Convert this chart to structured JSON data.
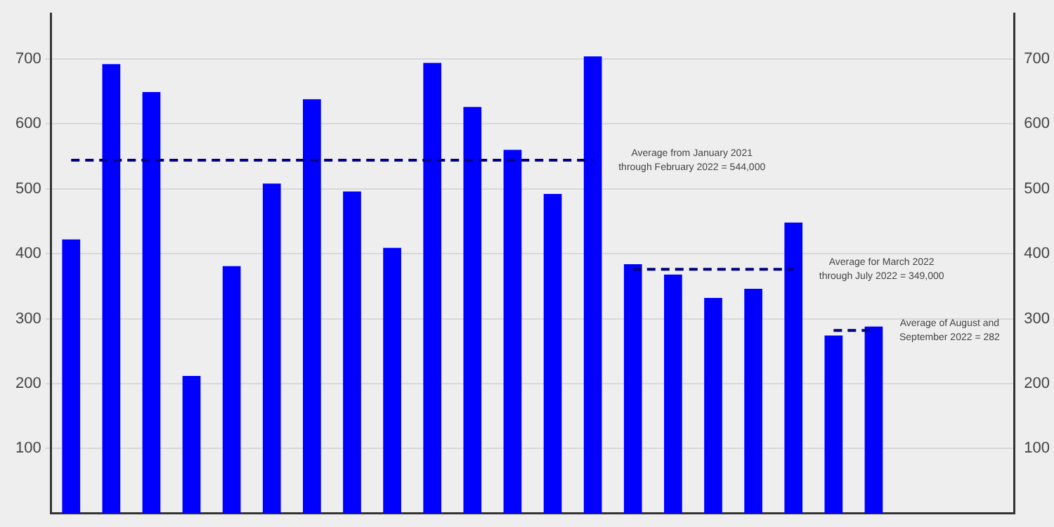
{
  "chart_data": {
    "type": "bar",
    "categories": [
      null,
      null,
      null,
      null,
      null,
      null,
      null,
      null,
      null,
      null,
      null,
      null,
      null,
      null,
      null,
      null,
      null,
      null,
      null,
      null,
      null,
      null,
      null,
      null
    ],
    "series": [
      {
        "color": "#0000ff",
        "values": [
          422,
          692,
          649,
          212,
          381,
          508,
          638,
          496,
          409,
          694,
          626,
          560,
          492,
          704,
          384,
          368,
          332,
          346,
          448,
          274,
          288,
          null,
          null,
          null
        ]
      },
      {
        "type": "line",
        "color": "#000080",
        "line_style": "dashed",
        "marker": "none",
        "values": [
          544,
          544,
          544,
          544,
          544,
          544,
          544,
          544,
          544,
          544,
          544,
          544,
          544,
          544,
          null,
          null,
          null,
          null,
          null,
          null,
          null,
          null,
          null,
          null
        ]
      },
      {
        "type": "line",
        "color": "#000080",
        "line_style": "dashed",
        "marker": "none",
        "values": [
          null,
          null,
          null,
          null,
          null,
          null,
          null,
          null,
          null,
          null,
          null,
          null,
          null,
          null,
          376,
          376,
          376,
          376,
          376,
          null,
          null,
          null,
          null,
          null
        ]
      },
      {
        "type": "line",
        "color": "#000080",
        "line_style": "dashed",
        "marker": "none",
        "values": [
          null,
          null,
          null,
          null,
          null,
          null,
          null,
          null,
          null,
          null,
          null,
          null,
          null,
          null,
          null,
          null,
          null,
          null,
          null,
          282,
          282,
          null,
          null,
          null
        ]
      }
    ],
    "annotations": [
      "Average from January 2021\nthrough February 2022 = 544,000",
      "Average for March 2022\nthrough July 2022 = 349,000",
      "Average of August and\nSeptember 2022 = 282"
    ],
    "ylim": [
      0,
      770
    ],
    "yticks": [
      100,
      200,
      300,
      400,
      500,
      600,
      700
    ],
    "y2lim": [
      0,
      770
    ],
    "y2ticks": [
      100,
      200,
      300,
      400,
      500,
      600,
      700
    ],
    "grid": "y",
    "legend": false
  }
}
